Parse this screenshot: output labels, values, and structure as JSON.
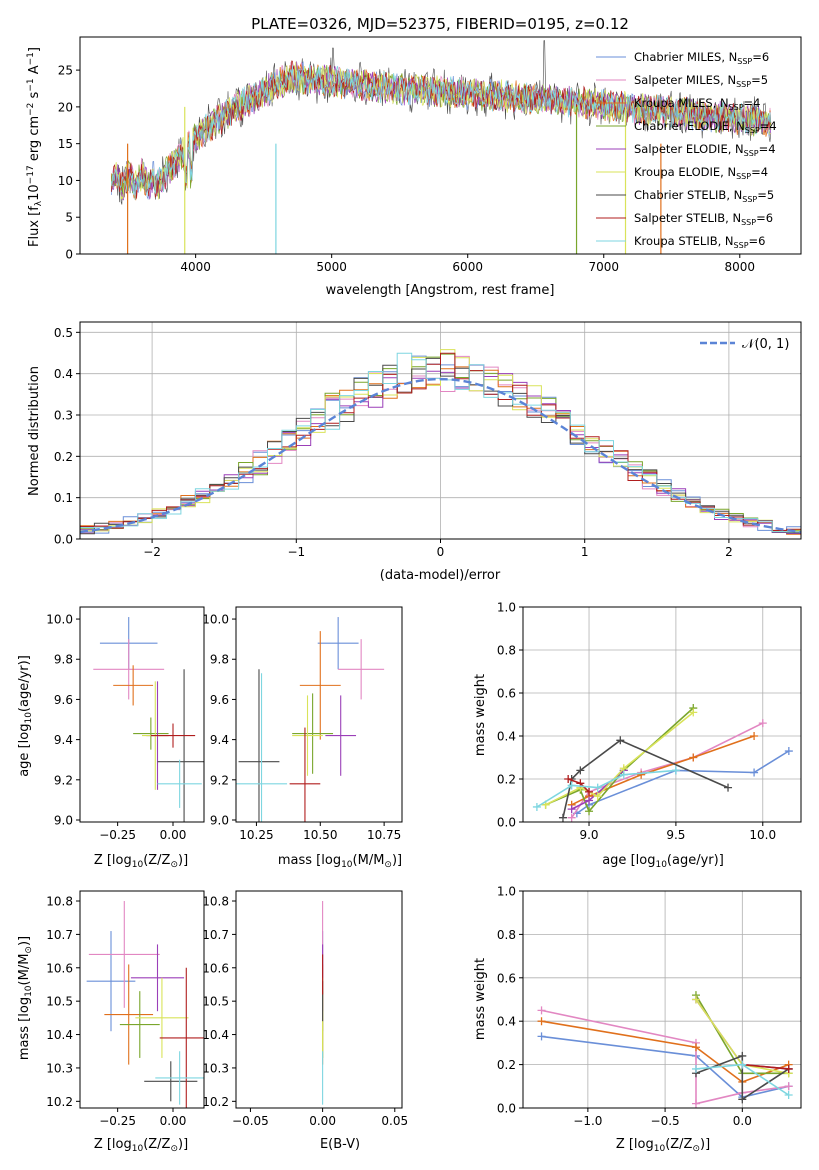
{
  "colors": [
    "#6a8fd8",
    "#e287c2",
    "#e0701c",
    "#7aa62c",
    "#9b3fb8",
    "#d9e35a",
    "#4a4a4a",
    "#b01e1e",
    "#7ed6e0"
  ],
  "chart_data": [
    {
      "id": "spectrum",
      "type": "line",
      "title": "PLATE=0326, MJD=52375, FIBERID=0195, z=0.12",
      "xlabel": "wavelength [Angstrom, rest frame]",
      "ylabel": "Flux [f",
      "ylabel_rest": "10",
      "ylabel_exp": "−17",
      "ylabel_units": " erg cm",
      "ylabel_units2": " s",
      "ylabel_units3": " A",
      "xlim": [
        3150,
        8450
      ],
      "ylim": [
        0,
        29.5
      ],
      "xticks": [
        "4000",
        "5000",
        "6000",
        "7000",
        "8000"
      ],
      "yticks": [
        "0",
        "5",
        "10",
        "15",
        "20",
        "25"
      ],
      "grid": false,
      "legend_position": "top-right",
      "series_names": [
        "Chabrier MILES, N",
        "Salpeter MILES, N",
        "Kroupa MILES, N",
        "Chabrier ELODIE, N",
        "Salpeter ELODIE, N",
        "Kroupa ELODIE, N",
        "Chabrier STELIB, N",
        "Salpeter STELIB, N",
        "Kroupa STELIB, N"
      ],
      "series_nssp": [
        "6",
        "5",
        "4",
        "4",
        "4",
        "4",
        "5",
        "6",
        "6"
      ],
      "nssp_sub": "SSP",
      "nssp_eq": "="
    },
    {
      "id": "residuals",
      "type": "line",
      "xlabel": "(data-model)/error",
      "ylabel": "Normed distribution",
      "xlim": [
        -2.5,
        2.5
      ],
      "ylim": [
        0,
        0.525
      ],
      "xticks": [
        "−2",
        "−1",
        "0",
        "1",
        "2"
      ],
      "yticks": [
        "0.0",
        "0.1",
        "0.2",
        "0.3",
        "0.4",
        "0.5"
      ],
      "grid": true,
      "legend_position": "top-right",
      "legend_label": "𝒩(0, 1)"
    },
    {
      "id": "age-vs-Z",
      "type": "scatter",
      "xlabel": "Z [log",
      "xlabel_sub": "10",
      "xlabel_rest": "(Z/Z",
      "ylabel": "age  [log",
      "ylabel_sub": "10",
      "ylabel_rest": "(age/yr)]",
      "xlim": [
        -0.42,
        0.14
      ],
      "ylim": [
        8.99,
        10.06
      ],
      "xticks": [
        "−0.25",
        "0.00"
      ],
      "yticks": [
        "9.0",
        "9.2",
        "9.4",
        "9.6",
        "9.8",
        "10.0"
      ],
      "points": [
        {
          "x": -0.2,
          "xerr": 0.13,
          "y": 9.88,
          "yerr": 0.13
        },
        {
          "x": -0.2,
          "xerr": 0.16,
          "y": 9.75,
          "yerr": 0.15
        },
        {
          "x": -0.18,
          "xerr": 0.09,
          "y": 9.67,
          "yerr": 0.1
        },
        {
          "x": -0.1,
          "xerr": 0.08,
          "y": 9.43,
          "yerr": 0.08
        },
        {
          "x": -0.07,
          "xerr": 0.05,
          "y": 9.42,
          "yerr": 0.27
        },
        {
          "x": -0.08,
          "xerr": 0.06,
          "y": 9.42,
          "yerr": 0.27
        },
        {
          "x": 0.05,
          "xerr": 0.12,
          "y": 9.29,
          "yerr": 0.46
        },
        {
          "x": 0.0,
          "xerr": 0.1,
          "y": 9.42,
          "yerr": 0.06
        },
        {
          "x": 0.03,
          "xerr": 0.1,
          "y": 9.18,
          "yerr": 0.12
        }
      ]
    },
    {
      "id": "age-vs-mass",
      "type": "scatter",
      "xlabel": "mass [log",
      "xlabel_sub": "10",
      "xlabel_rest": "(M/M",
      "xlim": [
        10.17,
        10.82
      ],
      "ylim": [
        8.99,
        10.06
      ],
      "xticks": [
        "10.25",
        "10.50",
        "10.75"
      ],
      "yticks": [
        "9.0",
        "9.2",
        "9.4",
        "9.6",
        "9.8",
        "10.0"
      ],
      "points": [
        {
          "x": 10.57,
          "xerr": 0.08,
          "y": 9.88,
          "yerr": 0.13
        },
        {
          "x": 10.66,
          "xerr": 0.09,
          "y": 9.75,
          "yerr": 0.15
        },
        {
          "x": 10.5,
          "xerr": 0.08,
          "y": 9.67,
          "yerr": 0.27
        },
        {
          "x": 10.47,
          "xerr": 0.08,
          "y": 9.43,
          "yerr": 0.2
        },
        {
          "x": 10.58,
          "xerr": 0.06,
          "y": 9.42,
          "yerr": 0.2
        },
        {
          "x": 10.45,
          "xerr": 0.06,
          "y": 9.42,
          "yerr": 0.2
        },
        {
          "x": 10.26,
          "xerr": 0.08,
          "y": 9.29,
          "yerr": 0.46
        },
        {
          "x": 10.44,
          "xerr": 0.06,
          "y": 9.18,
          "yerr": 0.28
        },
        {
          "x": 10.27,
          "xerr": 0.1,
          "y": 9.18,
          "yerr": 0.55
        }
      ]
    },
    {
      "id": "mass-weight-vs-age",
      "type": "line",
      "xlabel": "age  [log",
      "xlabel_sub": "10",
      "xlabel_rest": "(age/yr)]",
      "ylabel": "mass weight",
      "xlim": [
        8.62,
        10.22
      ],
      "ylim": [
        0,
        1
      ],
      "xticks": [
        "9.0",
        "9.5",
        "10.0"
      ],
      "yticks": [
        "0.0",
        "0.2",
        "0.4",
        "0.6",
        "0.8",
        "1.0"
      ],
      "grid": true,
      "series": [
        {
          "x": [
            8.93,
            9.0,
            9.5,
            9.95,
            10.15
          ],
          "y": [
            0.04,
            0.08,
            0.24,
            0.23,
            0.33
          ]
        },
        {
          "x": [
            8.9,
            9.0,
            9.3,
            9.6,
            10.0
          ],
          "y": [
            0.02,
            0.14,
            0.23,
            0.3,
            0.46
          ]
        },
        {
          "x": [
            8.9,
            9.0,
            9.3,
            9.6,
            9.95
          ],
          "y": [
            0.08,
            0.12,
            0.22,
            0.3,
            0.4
          ]
        },
        {
          "x": [
            8.75,
            8.95,
            9.0,
            9.2,
            9.6
          ],
          "y": [
            0.08,
            0.15,
            0.05,
            0.24,
            0.53
          ]
        },
        {
          "x": [
            8.9,
            9.0,
            9.2
          ],
          "y": [
            0.06,
            0.1,
            0.24
          ]
        },
        {
          "x": [
            8.75,
            8.95,
            9.05,
            9.2,
            9.6
          ],
          "y": [
            0.08,
            0.16,
            0.12,
            0.25,
            0.51
          ]
        },
        {
          "x": [
            8.85,
            8.9,
            8.95,
            9.18,
            9.8
          ],
          "y": [
            0.02,
            0.2,
            0.24,
            0.38,
            0.16
          ]
        },
        {
          "x": [
            8.88,
            8.95,
            9.0
          ],
          "y": [
            0.2,
            0.18,
            0.14
          ]
        },
        {
          "x": [
            8.7,
            8.9,
            9.05,
            9.2,
            9.5
          ],
          "y": [
            0.07,
            0.17,
            0.16,
            0.22,
            0.24
          ]
        }
      ]
    },
    {
      "id": "mass-vs-Z",
      "type": "scatter",
      "xlabel": "Z [log",
      "xlabel_sub": "10",
      "xlabel_rest": "(Z/Z",
      "ylabel": "mass [log",
      "ylabel_sub": "10",
      "ylabel_rest": "(M/M",
      "xlim": [
        -0.42,
        0.14
      ],
      "ylim": [
        10.18,
        10.83
      ],
      "xticks": [
        "−0.25",
        "0.00"
      ],
      "yticks": [
        "10.2",
        "10.3",
        "10.4",
        "10.5",
        "10.6",
        "10.7",
        "10.8"
      ],
      "points": [
        {
          "x": -0.28,
          "xerr": 0.11,
          "y": 10.56,
          "yerr": 0.15
        },
        {
          "x": -0.22,
          "xerr": 0.16,
          "y": 10.64,
          "yerr": 0.16
        },
        {
          "x": -0.2,
          "xerr": 0.11,
          "y": 10.46,
          "yerr": 0.15
        },
        {
          "x": -0.15,
          "xerr": 0.09,
          "y": 10.43,
          "yerr": 0.1
        },
        {
          "x": -0.07,
          "xerr": 0.12,
          "y": 10.57,
          "yerr": 0.1
        },
        {
          "x": -0.05,
          "xerr": 0.12,
          "y": 10.45,
          "yerr": 0.12
        },
        {
          "x": -0.01,
          "xerr": 0.12,
          "y": 10.26,
          "yerr": 0.06
        },
        {
          "x": 0.06,
          "xerr": 0.12,
          "y": 10.39,
          "yerr": 0.21
        },
        {
          "x": 0.03,
          "xerr": 0.11,
          "y": 10.27,
          "yerr": 0.08
        }
      ]
    },
    {
      "id": "mass-vs-EBV",
      "type": "scatter",
      "xlabel": "E(B-V)",
      "xlim": [
        -0.06,
        0.055
      ],
      "ylim": [
        10.18,
        10.83
      ],
      "xticks": [
        "−0.05",
        "0.00",
        "0.05"
      ],
      "yticks": [
        "10.2",
        "10.3",
        "10.4",
        "10.5",
        "10.6",
        "10.7",
        "10.8"
      ],
      "points": [
        {
          "x": 0,
          "y": 10.56,
          "yerr": 0.15
        },
        {
          "x": 0,
          "y": 10.64,
          "yerr": 0.16
        },
        {
          "x": 0,
          "y": 10.46,
          "yerr": 0.15
        },
        {
          "x": 0,
          "y": 10.43,
          "yerr": 0.1
        },
        {
          "x": 0,
          "y": 10.57,
          "yerr": 0.1
        },
        {
          "x": 0,
          "y": 10.45,
          "yerr": 0.12
        },
        {
          "x": 0,
          "y": 10.5,
          "yerr": 0.06
        },
        {
          "x": 0,
          "y": 10.58,
          "yerr": 0.06
        },
        {
          "x": 0,
          "y": 10.27,
          "yerr": 0.08
        }
      ]
    },
    {
      "id": "mass-weight-vs-Z",
      "type": "line",
      "xlabel": "Z [log",
      "xlabel_sub": "10",
      "xlabel_rest": "(Z/Z",
      "ylabel": "mass weight",
      "xlim": [
        -1.42,
        0.38
      ],
      "ylim": [
        0,
        1
      ],
      "xticks": [
        "−1.0",
        "−0.5",
        "0.0"
      ],
      "yticks": [
        "0.0",
        "0.2",
        "0.4",
        "0.6",
        "0.8",
        "1.0"
      ],
      "grid": true,
      "series": [
        {
          "x": [
            -1.3,
            -0.3,
            0.0,
            0.3
          ],
          "y": [
            0.33,
            0.24,
            0.05,
            0.1
          ]
        },
        {
          "x": [
            -1.3,
            -0.3,
            -0.3,
            0.0,
            0.3
          ],
          "y": [
            0.45,
            0.3,
            0.02,
            0.07,
            0.1
          ]
        },
        {
          "x": [
            -1.3,
            -0.3,
            0.0,
            0.3
          ],
          "y": [
            0.4,
            0.28,
            0.12,
            0.2
          ]
        },
        {
          "x": [
            -0.3,
            0.0,
            0.3
          ],
          "y": [
            0.52,
            0.16,
            0.16
          ]
        },
        {
          "x": [
            -0.3,
            0.0,
            0.3
          ],
          "y": [
            0.5,
            0.2,
            0.18
          ]
        },
        {
          "x": [
            -0.3,
            0.0,
            0.3
          ],
          "y": [
            0.5,
            0.2,
            0.16
          ]
        },
        {
          "x": [
            -0.3,
            0.0,
            0.0,
            0.3
          ],
          "y": [
            0.16,
            0.24,
            0.04,
            0.18
          ]
        },
        {
          "x": [
            0.0,
            0.3
          ],
          "y": [
            0.2,
            0.18
          ]
        },
        {
          "x": [
            -0.3,
            0.0,
            0.3
          ],
          "y": [
            0.18,
            0.2,
            0.06
          ]
        }
      ]
    }
  ]
}
